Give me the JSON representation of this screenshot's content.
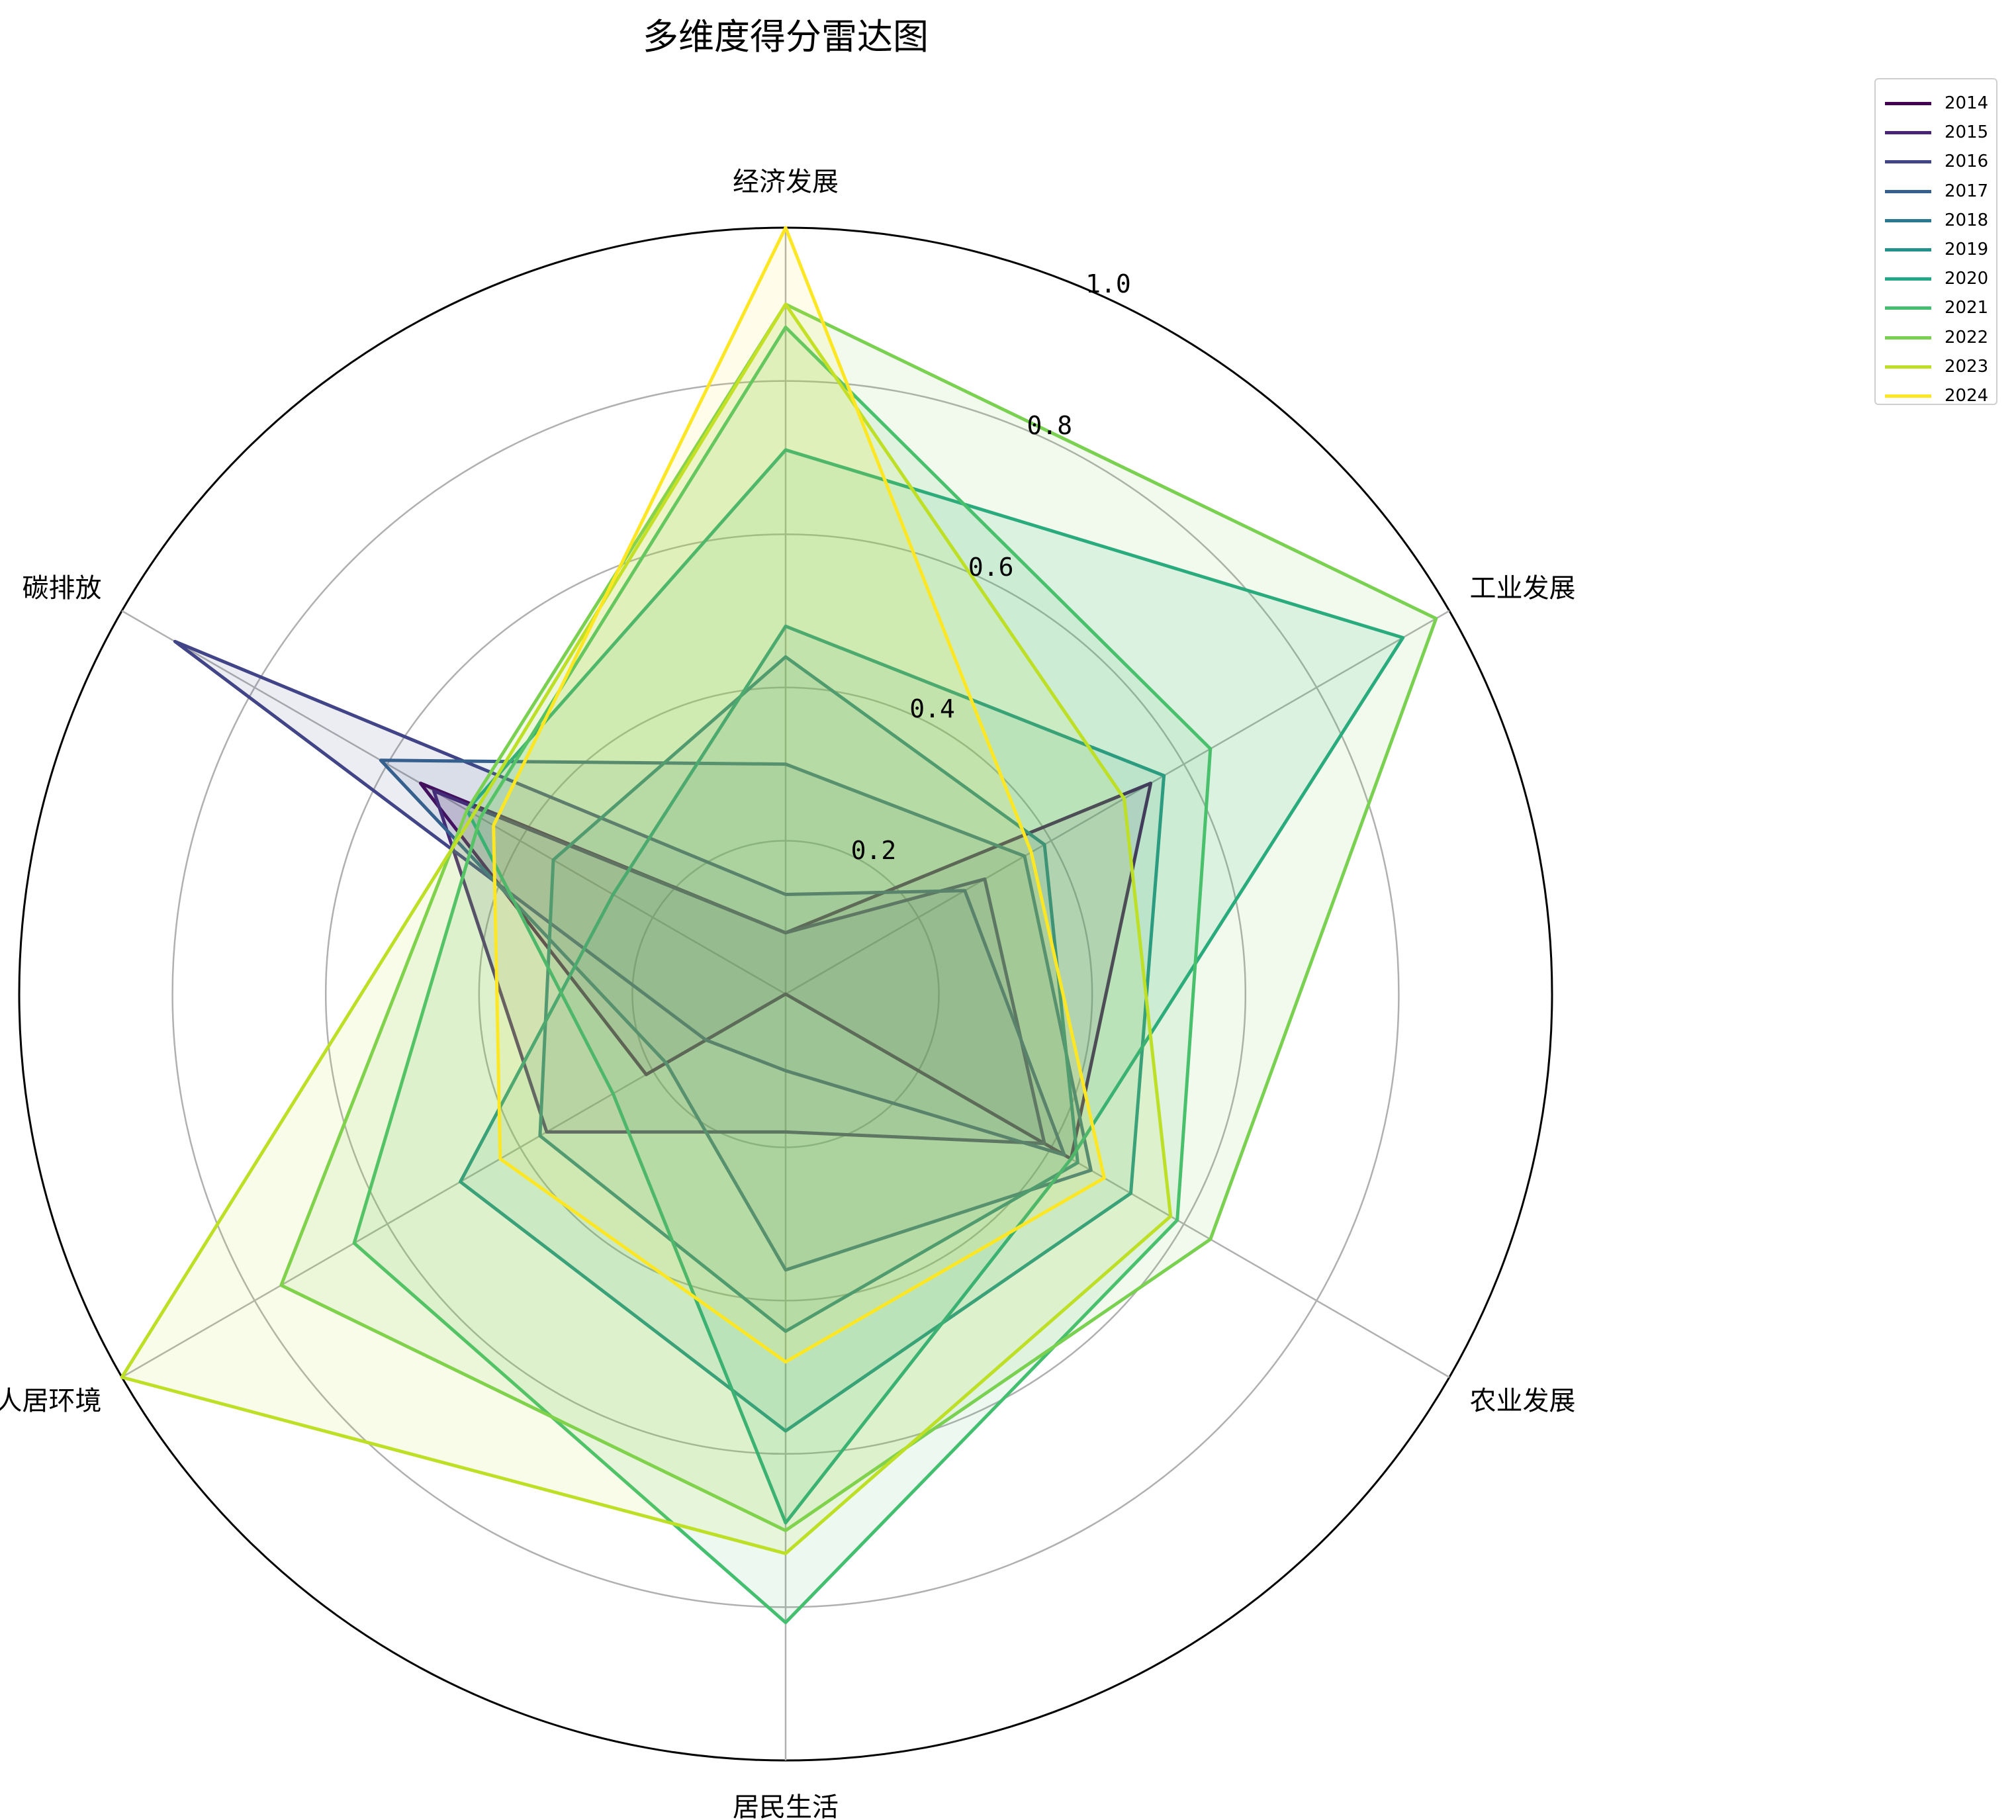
{
  "chart_data": {
    "type": "radar",
    "title": "多维度得分雷达图",
    "axes": [
      "经济发展",
      "工业发展",
      "农业发展",
      "居民生活",
      "人居环境",
      "碳排放"
    ],
    "rlim": [
      0,
      1.0
    ],
    "r_ticks": [
      "0.2",
      "0.4",
      "0.6",
      "0.8",
      "1.0"
    ],
    "r_tick_values": [
      0.2,
      0.4,
      0.6,
      0.8,
      1.0
    ],
    "grid": true,
    "legend": "upper-right",
    "series": [
      {
        "name": "2014",
        "color": "#440154",
        "values": [
          0.08,
          0.55,
          0.43,
          0.0,
          0.21,
          0.55
        ]
      },
      {
        "name": "2015",
        "color": "#482475",
        "values": [
          0.08,
          0.3,
          0.39,
          0.18,
          0.36,
          0.53
        ]
      },
      {
        "name": "2016",
        "color": "#414487",
        "values": [
          0.13,
          0.27,
          0.42,
          0.1,
          0.12,
          0.92
        ]
      },
      {
        "name": "2017",
        "color": "#355f8d",
        "values": [
          0.3,
          0.36,
          0.46,
          0.36,
          0.18,
          0.61
        ]
      },
      {
        "name": "2018",
        "color": "#2a788e",
        "values": [
          0.44,
          0.39,
          0.44,
          0.44,
          0.37,
          0.35
        ]
      },
      {
        "name": "2019",
        "color": "#21918c",
        "values": [
          0.48,
          0.57,
          0.52,
          0.57,
          0.49,
          0.26
        ]
      },
      {
        "name": "2020",
        "color": "#22a884",
        "values": [
          0.71,
          0.93,
          0.43,
          0.69,
          0.26,
          0.48
        ]
      },
      {
        "name": "2021",
        "color": "#44bf70",
        "values": [
          0.87,
          0.64,
          0.59,
          0.82,
          0.65,
          0.46
        ]
      },
      {
        "name": "2022",
        "color": "#7ad151",
        "values": [
          0.9,
          0.98,
          0.64,
          0.7,
          0.76,
          0.48
        ]
      },
      {
        "name": "2023",
        "color": "#bddf26",
        "values": [
          0.9,
          0.51,
          0.58,
          0.73,
          1.0,
          0.47
        ]
      },
      {
        "name": "2024",
        "color": "#fde725",
        "values": [
          1.0,
          0.37,
          0.48,
          0.48,
          0.43,
          0.44
        ]
      }
    ]
  }
}
